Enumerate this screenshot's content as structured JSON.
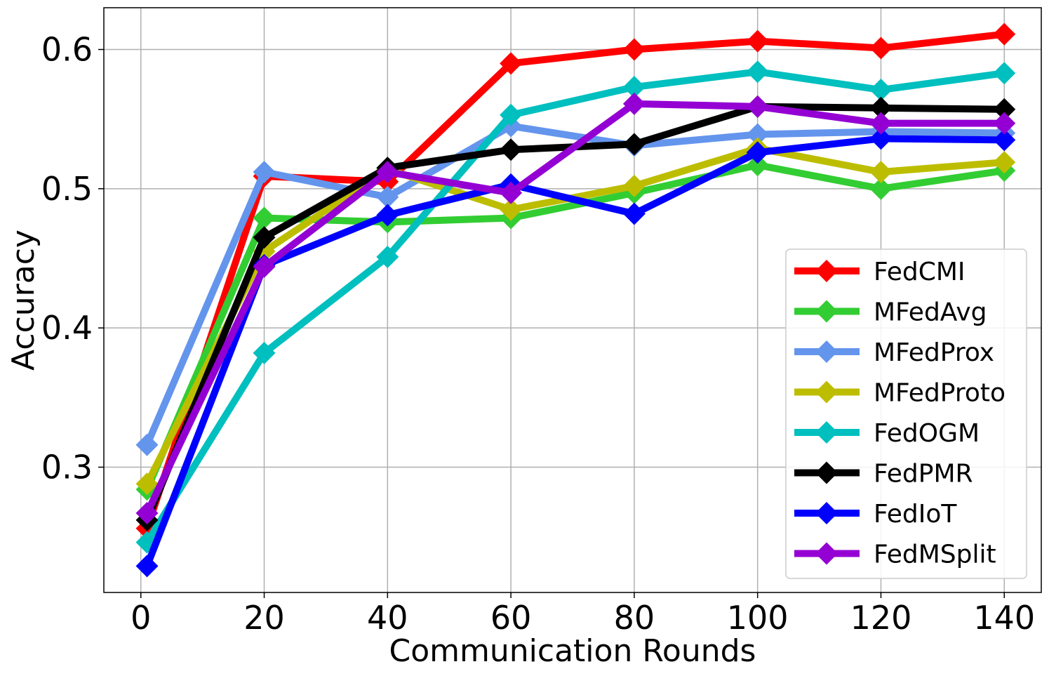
{
  "chart_data": {
    "type": "line",
    "title": "",
    "xlabel": "Communication Rounds",
    "ylabel": "Accuracy",
    "xlim": [
      -6,
      146
    ],
    "ylim": [
      0.21,
      0.63
    ],
    "grid": true,
    "legend_position": "lower-right",
    "x": [
      1,
      20,
      40,
      60,
      80,
      100,
      120,
      140
    ],
    "xticks": [
      0,
      20,
      40,
      60,
      80,
      100,
      120,
      140
    ],
    "xtick_labels": [
      "0",
      "20",
      "40",
      "60",
      "80",
      "100",
      "120",
      "140"
    ],
    "yticks": [
      0.3,
      0.4,
      0.5,
      0.6
    ],
    "ytick_labels": [
      "0.3",
      "0.4",
      "0.5",
      "0.6"
    ],
    "series": [
      {
        "name": "FedCMI",
        "color": "#ff0000",
        "values": [
          0.256,
          0.509,
          0.505,
          0.59,
          0.6,
          0.606,
          0.601,
          0.611
        ]
      },
      {
        "name": "MFedAvg",
        "color": "#32cd32",
        "values": [
          0.284,
          0.479,
          0.476,
          0.479,
          0.497,
          0.517,
          0.5,
          0.513
        ]
      },
      {
        "name": "MFedProx",
        "color": "#6495ed",
        "values": [
          0.316,
          0.512,
          0.494,
          0.545,
          0.531,
          0.539,
          0.541,
          0.54
        ]
      },
      {
        "name": "MFedProto",
        "color": "#bdbd00",
        "values": [
          0.288,
          0.455,
          0.514,
          0.485,
          0.502,
          0.529,
          0.512,
          0.519
        ]
      },
      {
        "name": "FedOGM",
        "color": "#00bfbf",
        "values": [
          0.246,
          0.382,
          0.451,
          0.553,
          0.573,
          0.584,
          0.571,
          0.583
        ]
      },
      {
        "name": "FedPMR",
        "color": "#000000",
        "values": [
          0.262,
          0.465,
          0.515,
          0.528,
          0.532,
          0.559,
          0.558,
          0.557
        ]
      },
      {
        "name": "FedIoT",
        "color": "#0000ff",
        "values": [
          0.229,
          0.445,
          0.481,
          0.503,
          0.482,
          0.526,
          0.536,
          0.535
        ]
      },
      {
        "name": "FedMSplit",
        "color": "#9400d3",
        "values": [
          0.267,
          0.444,
          0.512,
          0.497,
          0.561,
          0.559,
          0.547,
          0.547
        ]
      }
    ]
  }
}
